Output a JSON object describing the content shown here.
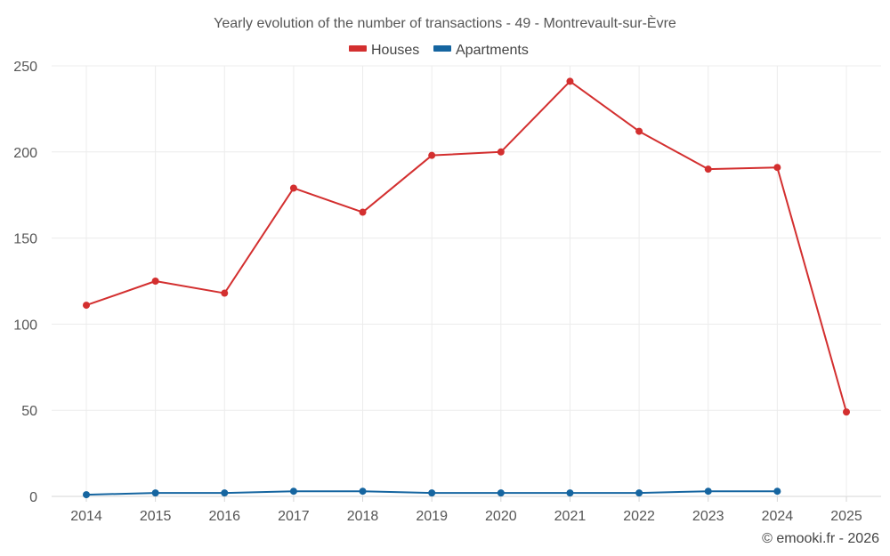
{
  "chart_data": {
    "type": "line",
    "title": "Yearly evolution of the number of transactions - 49 - Montrevault-sur-Èvre",
    "xlabel": "",
    "ylabel": "",
    "categories": [
      "2014",
      "2015",
      "2016",
      "2017",
      "2018",
      "2019",
      "2020",
      "2021",
      "2022",
      "2023",
      "2024",
      "2025"
    ],
    "ylim": [
      0,
      250
    ],
    "yticks": [
      0,
      50,
      100,
      150,
      200,
      250
    ],
    "grid": true,
    "legend_position": "top-center",
    "series": [
      {
        "name": "Houses",
        "color": "#d32f2f",
        "values": [
          111,
          125,
          118,
          179,
          165,
          198,
          200,
          241,
          212,
          190,
          191,
          49
        ]
      },
      {
        "name": "Apartments",
        "color": "#1565a0",
        "values": [
          1,
          2,
          2,
          3,
          3,
          2,
          2,
          2,
          2,
          3,
          3,
          null
        ]
      }
    ]
  },
  "credit": "© emooki.fr - 2026"
}
